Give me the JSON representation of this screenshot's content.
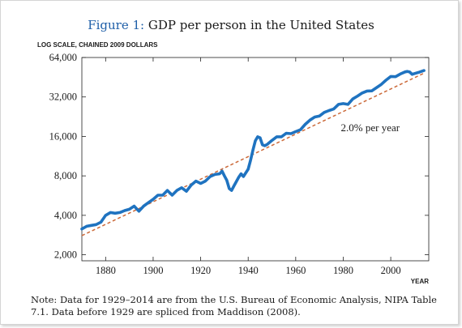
{
  "chart_data": {
    "type": "line",
    "title_prefix": "Figure 1:",
    "title": "GDP per person in the United States",
    "ylabel": "LOG SCALE, CHAINED 2009 DOLLARS",
    "xlabel": "YEAR",
    "yscale": "log",
    "xlim": [
      1870,
      2016
    ],
    "ylim": [
      1800,
      64000
    ],
    "x_ticks": [
      1880,
      1900,
      1920,
      1940,
      1960,
      1980,
      2000
    ],
    "y_ticks": [
      2000,
      4000,
      8000,
      16000,
      32000,
      64000
    ],
    "y_tick_labels": [
      "2,000",
      "4,000",
      "8,000",
      "16,000",
      "32,000",
      "64,000"
    ],
    "series": [
      {
        "color": "#1f73c0",
        "x": [
          1870,
          1872,
          1874,
          1876,
          1878,
          1880,
          1882,
          1884,
          1886,
          1888,
          1890,
          1892,
          1894,
          1896,
          1898,
          1900,
          1902,
          1904,
          1906,
          1908,
          1910,
          1912,
          1914,
          1916,
          1918,
          1920,
          1922,
          1924,
          1926,
          1928,
          1929,
          1930,
          1931,
          1932,
          1933,
          1934,
          1936,
          1937,
          1938,
          1940,
          1941,
          1942,
          1943,
          1944,
          1945,
          1946,
          1947,
          1948,
          1950,
          1952,
          1954,
          1956,
          1958,
          1960,
          1962,
          1964,
          1966,
          1968,
          1970,
          1972,
          1974,
          1976,
          1978,
          1980,
          1982,
          1984,
          1986,
          1988,
          1990,
          1992,
          1994,
          1996,
          1998,
          2000,
          2002,
          2004,
          2006,
          2007,
          2008,
          2009,
          2010,
          2012,
          2014
        ],
        "values": [
          3150,
          3300,
          3350,
          3400,
          3550,
          4000,
          4200,
          4150,
          4200,
          4350,
          4450,
          4700,
          4300,
          4700,
          5000,
          5300,
          5700,
          5700,
          6200,
          5700,
          6200,
          6500,
          6100,
          6800,
          7300,
          7000,
          7300,
          7900,
          8200,
          8300,
          8700,
          8000,
          7400,
          6400,
          6200,
          6700,
          7800,
          8300,
          7900,
          9000,
          10500,
          12600,
          14800,
          15900,
          15600,
          13800,
          13600,
          13900,
          14900,
          15900,
          15900,
          16900,
          16800,
          17400,
          18000,
          19800,
          21300,
          22500,
          22900,
          24400,
          25200,
          25900,
          28100,
          28500,
          28100,
          30900,
          32500,
          34300,
          35500,
          35600,
          37700,
          39900,
          43000,
          45900,
          45700,
          47900,
          49700,
          50100,
          49600,
          47600,
          48300,
          49500,
          50900
        ]
      },
      {
        "color": "#cc6a3a",
        "x": [
          1870,
          2014
        ],
        "values": [
          2800,
          48600
        ]
      }
    ],
    "annotations": [
      {
        "text": "2.0% per year",
        "x": 1979,
        "y": 17500
      }
    ],
    "grid": false
  },
  "note": "Note: Data for 1929–2014 are from the U.S. Bureau of Economic Analysis, NIPA Table 7.1. Data before 1929 are spliced from Maddison (2008)."
}
